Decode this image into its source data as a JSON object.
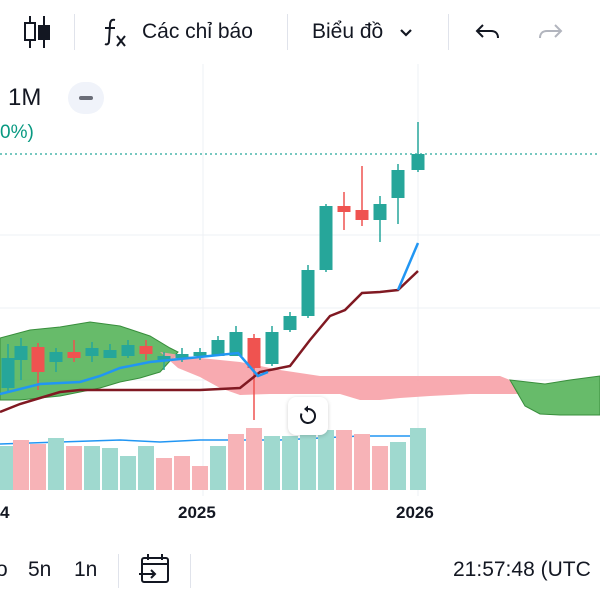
{
  "toolbar": {
    "indicators_label": "Các chỉ báo",
    "chart_type_label": "Biểu đồ"
  },
  "legend": {
    "interval": "1M",
    "change_pct": "0%)"
  },
  "x_axis": {
    "labels": [
      "4",
      "2025",
      "2026"
    ]
  },
  "bottom_bar": {
    "ranges": [
      "o",
      "5n",
      "1n"
    ],
    "time": "21:57:48 (UTC"
  },
  "colors": {
    "up": "#26a69a",
    "down": "#ef5350",
    "conversion_line": "#2196f3",
    "base_line": "#801922",
    "cloud_bull": "#4caf50",
    "cloud_bear": "#f7a1a7",
    "volume_avg": "#2196f3"
  },
  "icons": {
    "chart_style": "candles-icon",
    "indicators": "fx-icon",
    "dropdown": "chevron-down-icon",
    "undo": "undo-icon",
    "redo": "redo-icon",
    "collapse": "minus-icon",
    "reset": "reset-icon",
    "goto_date": "calendar-arrow-icon"
  }
}
